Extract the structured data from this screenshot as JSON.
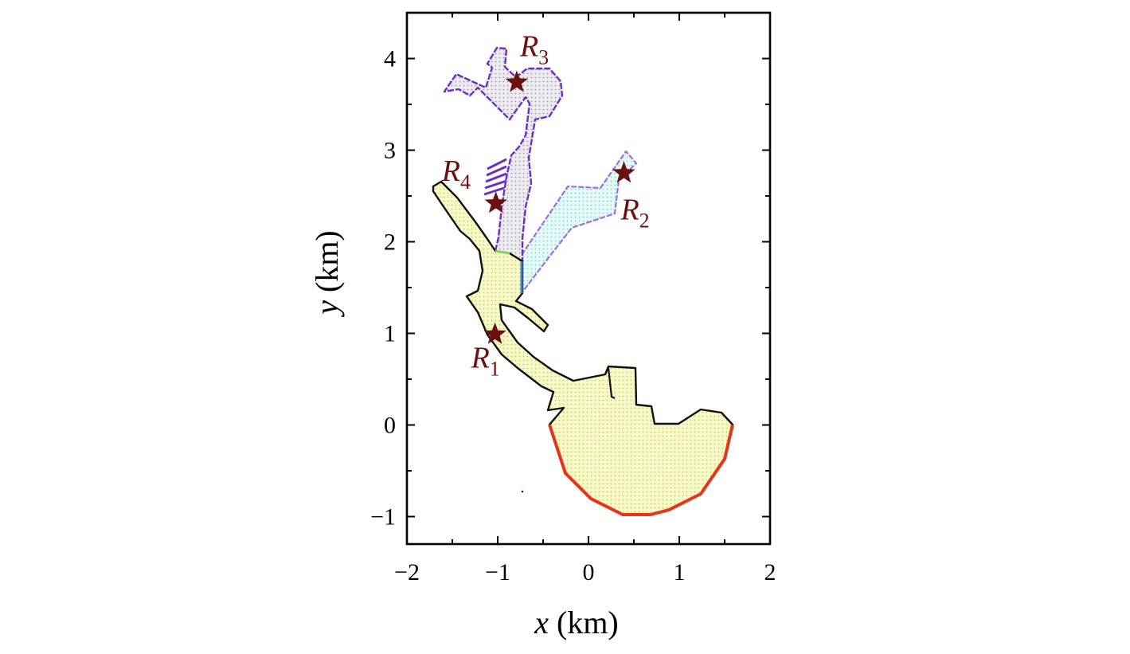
{
  "chart_data": {
    "type": "map",
    "xlabel_var": "x",
    "xlabel_unit": "(km)",
    "ylabel_var": "y",
    "ylabel_unit": "(km)",
    "xlim": [
      -2,
      2
    ],
    "ylim": [
      -1.3,
      4.5
    ],
    "x_ticks": [
      -2,
      -1,
      0,
      1,
      2
    ],
    "x_tick_labels": [
      "−2",
      "−1",
      "0",
      "1",
      "2"
    ],
    "y_ticks": [
      -1,
      0,
      1,
      2,
      3,
      4
    ],
    "y_tick_labels": [
      "−1",
      "0",
      "1",
      "2",
      "3",
      "4"
    ],
    "receivers": [
      {
        "letter": "R",
        "index": "1",
        "x": -1.03,
        "y": 0.99
      },
      {
        "letter": "R",
        "index": "2",
        "x": 0.39,
        "y": 2.75
      },
      {
        "letter": "R",
        "index": "3",
        "x": -0.79,
        "y": 3.74
      },
      {
        "letter": "R",
        "index": "4",
        "x": -1.02,
        "y": 2.42
      }
    ],
    "regions": [
      {
        "name": "main-basin",
        "fill": "#f5f7bf",
        "stroke": "#111111"
      },
      {
        "name": "north-branch",
        "fill": "#e3e3e9",
        "stroke": "#6a2fc7"
      },
      {
        "name": "east-branch",
        "fill": "#d9f5f2",
        "stroke": "#9b6fe0"
      }
    ],
    "boundary_colors": {
      "open_sea": "#e8341c",
      "junction_north": "#7ed957",
      "junction_east": "#3a7bd5"
    },
    "marker_color": "#6b1111"
  }
}
